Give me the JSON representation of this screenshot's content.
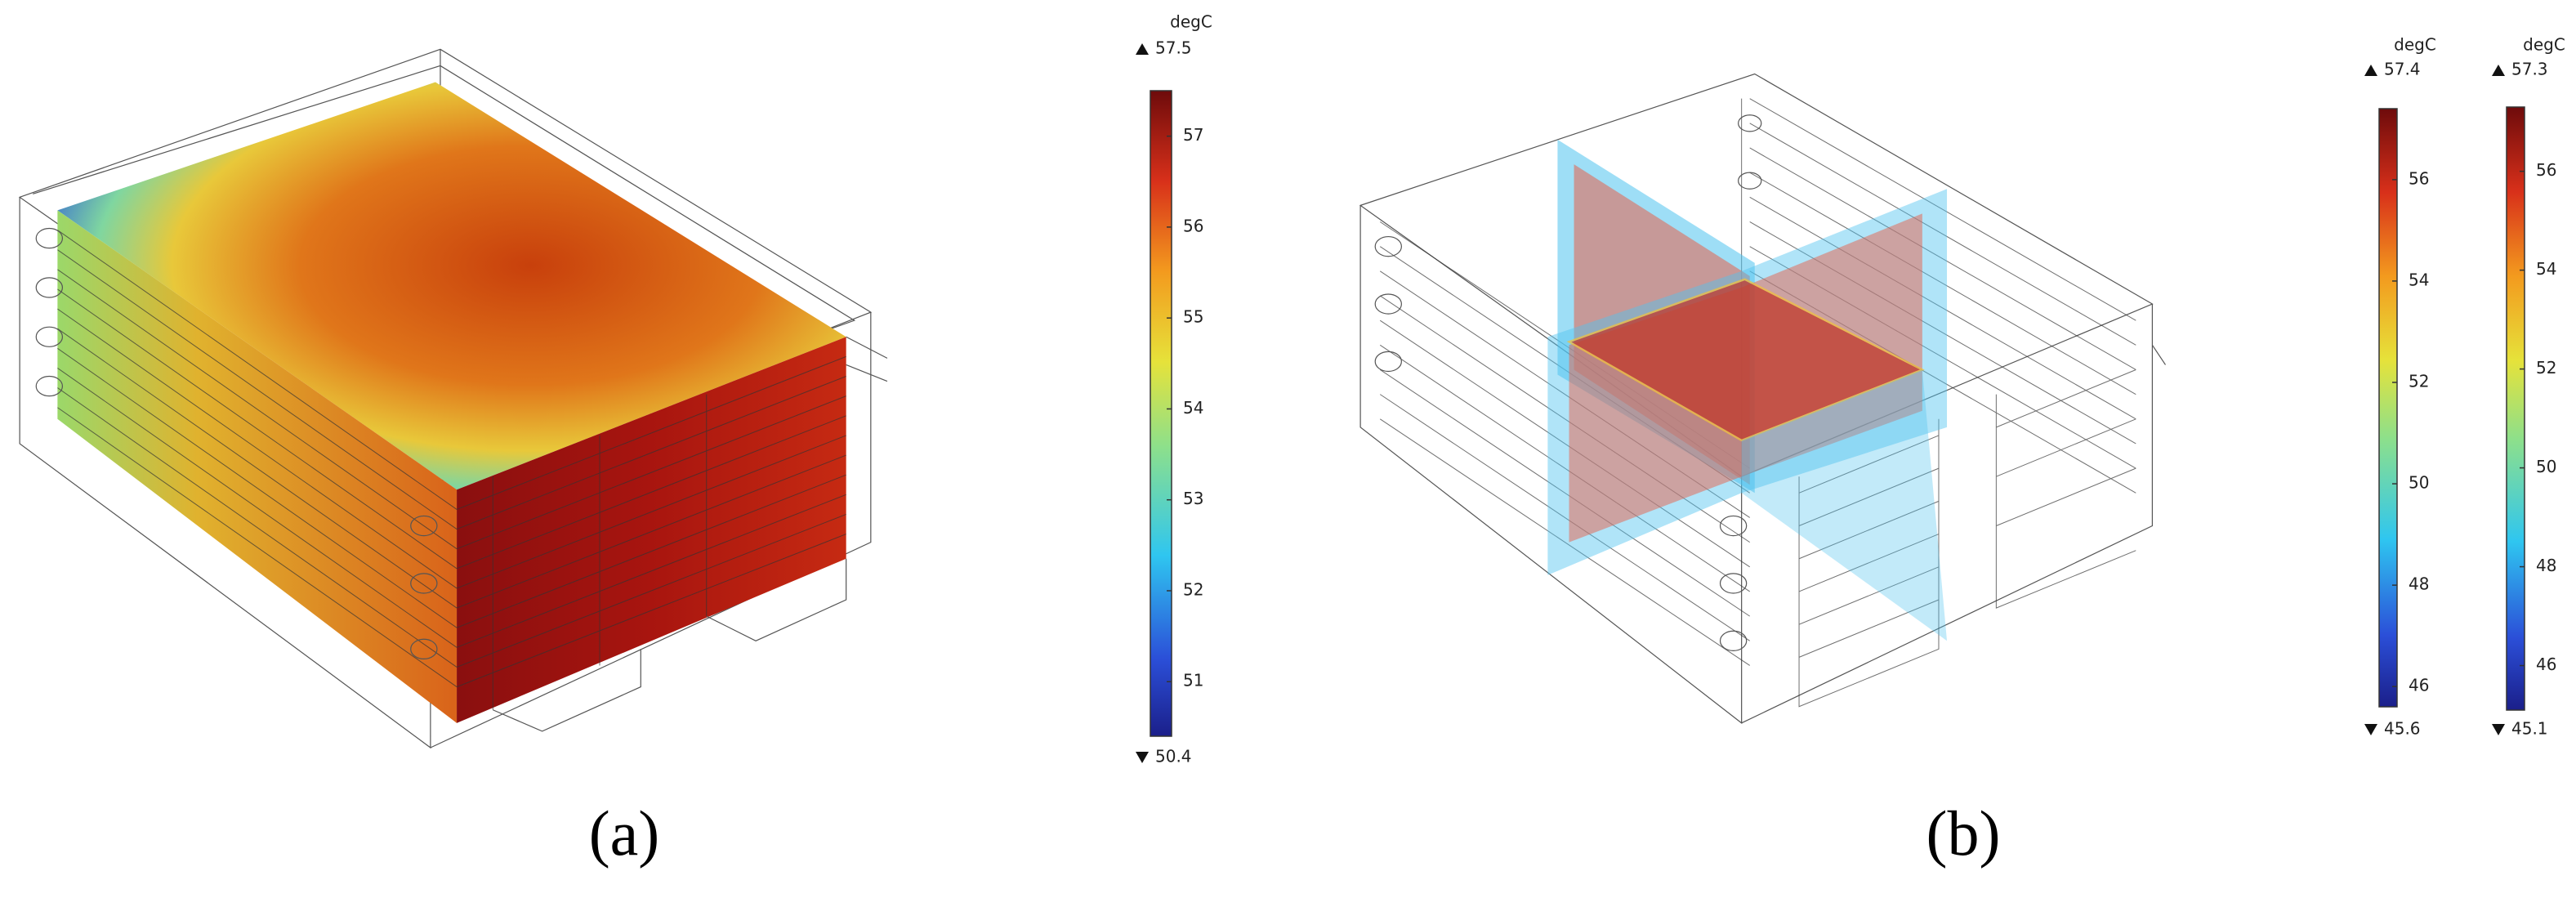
{
  "panels": [
    {
      "label": "(a)",
      "colorbars": [
        {
          "unit": "degC",
          "max": 57.5,
          "min": 50.4,
          "ticks": [
            51,
            52,
            53,
            54,
            55,
            56,
            57
          ]
        }
      ]
    },
    {
      "label": "(b)",
      "colorbars": [
        {
          "unit": "degC",
          "max": 57.4,
          "min": 45.6,
          "ticks": [
            46,
            48,
            50,
            52,
            54,
            56
          ]
        },
        {
          "unit": "degC",
          "max": 57.3,
          "min": 45.1,
          "ticks": [
            46,
            48,
            50,
            52,
            54,
            56
          ]
        }
      ]
    }
  ]
}
